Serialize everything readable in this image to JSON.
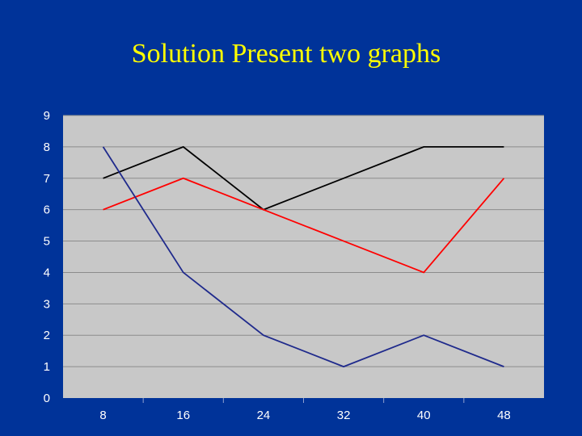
{
  "slide": {
    "title": "Solution Present two graphs"
  },
  "colors": {
    "background": "#003399",
    "plot_area": "#c8c8c8",
    "gridline": "#8c8c8c",
    "title": "#ffff00",
    "tick_text": "#ffffff"
  },
  "chart_data": {
    "type": "line",
    "title": "",
    "xlabel": "",
    "ylabel": "",
    "x": [
      8,
      16,
      24,
      32,
      40,
      48
    ],
    "ylim": [
      0,
      9
    ],
    "yticks": [
      0,
      1,
      2,
      3,
      4,
      5,
      6,
      7,
      8,
      9
    ],
    "grid": true,
    "legend": "none",
    "series": [
      {
        "color": "#000000",
        "values": [
          7,
          8,
          6,
          7,
          8,
          8
        ]
      },
      {
        "color": "#ff0000",
        "values": [
          6,
          7,
          6,
          5,
          4,
          7
        ]
      },
      {
        "color": "#1f2a8c",
        "values": [
          8,
          4,
          2,
          1,
          2,
          1
        ]
      }
    ]
  }
}
